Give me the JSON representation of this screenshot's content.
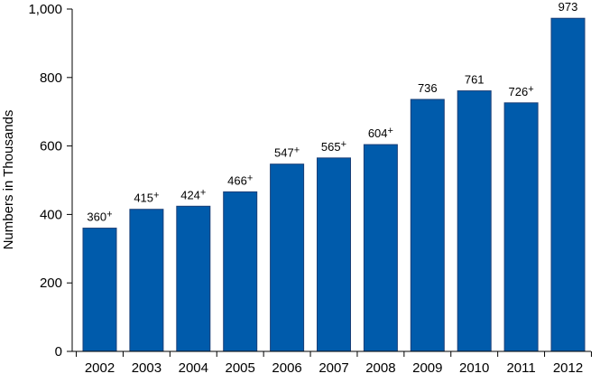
{
  "chart_data": {
    "type": "bar",
    "title": "",
    "xlabel": "",
    "ylabel": "Numbers in Thousands",
    "ylim": [
      0,
      1000
    ],
    "yticks": [
      0,
      200,
      400,
      600,
      800,
      1000
    ],
    "ytick_labels": [
      "0",
      "200",
      "400",
      "600",
      "800",
      "1,000"
    ],
    "categories": [
      "2002",
      "2003",
      "2004",
      "2005",
      "2006",
      "2007",
      "2008",
      "2009",
      "2010",
      "2011",
      "2012"
    ],
    "values": [
      360,
      415,
      424,
      466,
      547,
      565,
      604,
      736,
      761,
      726,
      973
    ],
    "labels": [
      "360",
      "415",
      "424",
      "466",
      "547",
      "565",
      "604",
      "736",
      "761",
      "726",
      "973"
    ],
    "label_marks": [
      "+",
      "+",
      "+",
      "+",
      "+",
      "+",
      "+",
      "",
      "",
      "+",
      ""
    ],
    "bar_color": "#005bab",
    "bar_edge_color": "#1a3f78",
    "grid": false
  }
}
